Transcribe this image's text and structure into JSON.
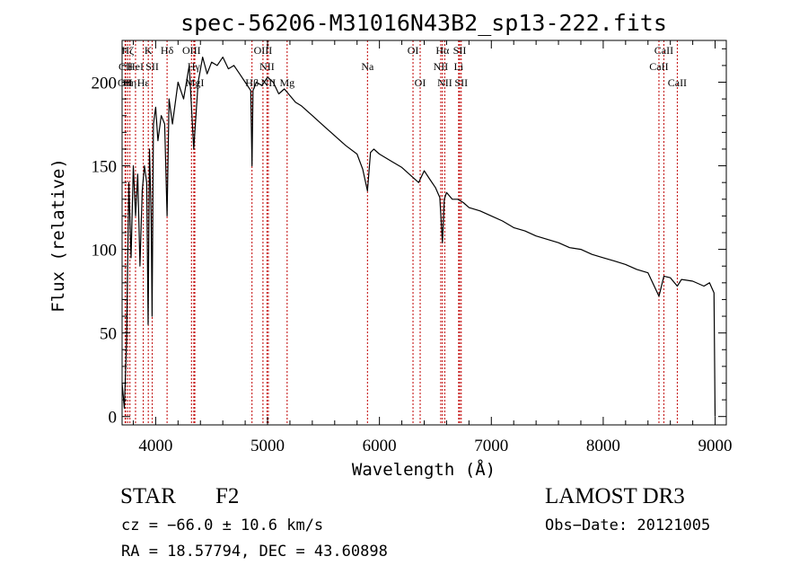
{
  "chart_data": {
    "type": "line",
    "title": "spec-56206-M31016N43B2_sp13-222.fits",
    "xlabel": "Wavelength (Å)",
    "ylabel": "Flux (relative)",
    "xlim": [
      3700,
      9100
    ],
    "ylim": [
      -5,
      225
    ],
    "xticks": [
      4000,
      5000,
      6000,
      7000,
      8000,
      9000
    ],
    "xtick_labels": [
      "4000",
      "5000",
      "6000",
      "7000",
      "8000",
      "9000"
    ],
    "yticks": [
      0,
      50,
      100,
      150,
      200
    ],
    "ytick_labels": [
      "0",
      "50",
      "100",
      "150",
      "200"
    ],
    "grid": false,
    "series": [
      {
        "name": "spectrum",
        "color": "#000000",
        "x": [
          3700,
          3720,
          3740,
          3760,
          3780,
          3800,
          3820,
          3840,
          3860,
          3880,
          3900,
          3920,
          3933,
          3945,
          3960,
          3968,
          3980,
          4000,
          4020,
          4050,
          4080,
          4102,
          4120,
          4150,
          4200,
          4250,
          4300,
          4340,
          4380,
          4420,
          4460,
          4500,
          4550,
          4600,
          4650,
          4700,
          4750,
          4800,
          4850,
          4861,
          4870,
          4900,
          4950,
          5000,
          5050,
          5100,
          5150,
          5200,
          5250,
          5300,
          5400,
          5500,
          5600,
          5700,
          5800,
          5850,
          5893,
          5920,
          5950,
          6000,
          6100,
          6200,
          6300,
          6350,
          6400,
          6450,
          6500,
          6540,
          6563,
          6580,
          6600,
          6650,
          6700,
          6750,
          6800,
          6900,
          7000,
          7100,
          7200,
          7300,
          7400,
          7500,
          7600,
          7700,
          7800,
          7900,
          8000,
          8100,
          8200,
          8300,
          8400,
          8498,
          8542,
          8600,
          8662,
          8700,
          8800,
          8900,
          8950,
          8990,
          9000
        ],
        "y": [
          20,
          5,
          45,
          140,
          95,
          150,
          120,
          145,
          90,
          135,
          150,
          140,
          55,
          160,
          120,
          60,
          175,
          185,
          165,
          180,
          175,
          120,
          190,
          175,
          200,
          190,
          210,
          160,
          200,
          215,
          205,
          212,
          210,
          215,
          208,
          210,
          205,
          200,
          195,
          150,
          195,
          200,
          198,
          203,
          200,
          193,
          196,
          192,
          188,
          186,
          180,
          174,
          168,
          162,
          157,
          148,
          135,
          158,
          160,
          157,
          153,
          149,
          143,
          140,
          147,
          142,
          137,
          131,
          104,
          130,
          134,
          130,
          130,
          128,
          125,
          123,
          120,
          117,
          113,
          111,
          108,
          106,
          104,
          101,
          100,
          97,
          95,
          93,
          91,
          88,
          86,
          72,
          84,
          83,
          78,
          82,
          81,
          78,
          80,
          74,
          0
        ]
      }
    ],
    "line_markers": [
      {
        "label": "OII",
        "x": 3727,
        "level": 2
      },
      {
        "label": "CII",
        "x": 3732,
        "level": 1
      },
      {
        "label": "Hζ",
        "x": 3750,
        "level": 0
      },
      {
        "label": "Hη",
        "x": 3770,
        "level": 2
      },
      {
        "label": "HeI",
        "x": 3820,
        "level": 1
      },
      {
        "label": "Hε",
        "x": 3889,
        "level": 2
      },
      {
        "label": "K",
        "x": 3934,
        "level": 0
      },
      {
        "label": "SII",
        "x": 3969,
        "level": 1
      },
      {
        "label": "Hδ",
        "x": 4102,
        "level": 0
      },
      {
        "label": "OIII",
        "x": 4320,
        "level": 0
      },
      {
        "label": "Hγ",
        "x": 4341,
        "level": 1
      },
      {
        "label": "MgI",
        "x": 4350,
        "level": 2
      },
      {
        "label": "Hβ",
        "x": 4861,
        "level": 2
      },
      {
        "label": "OIII",
        "x": 4959,
        "level": 0
      },
      {
        "label": "NII",
        "x": 4995,
        "level": 1
      },
      {
        "label": "NII",
        "x": 5007,
        "level": 2
      },
      {
        "label": "Mg",
        "x": 5175,
        "level": 2
      },
      {
        "label": "Na",
        "x": 5893,
        "level": 1
      },
      {
        "label": "OI",
        "x": 6300,
        "level": 0
      },
      {
        "label": "OI",
        "x": 6364,
        "level": 2
      },
      {
        "label": "Hα",
        "x": 6563,
        "level": 0
      },
      {
        "label": "NII",
        "x": 6548,
        "level": 1
      },
      {
        "label": "NII",
        "x": 6584,
        "level": 2
      },
      {
        "label": "SII",
        "x": 6717,
        "level": 0
      },
      {
        "label": "Li",
        "x": 6708,
        "level": 1
      },
      {
        "label": "SII",
        "x": 6731,
        "level": 2
      },
      {
        "label": "CaII",
        "x": 8542,
        "level": 0
      },
      {
        "label": "CaII",
        "x": 8498,
        "level": 1
      },
      {
        "label": "CaII",
        "x": 8662,
        "level": 2
      }
    ],
    "marker_color": "#c00000"
  },
  "info": {
    "class_text": "STAR",
    "subclass_text": "F2",
    "survey": "LAMOST DR3",
    "cz_text": "cz = −66.0 ± 10.6 km/s",
    "obs_date": "Obs−Date: 20121005",
    "radec_text": "RA =  18.57794, DEC =  43.60898"
  }
}
